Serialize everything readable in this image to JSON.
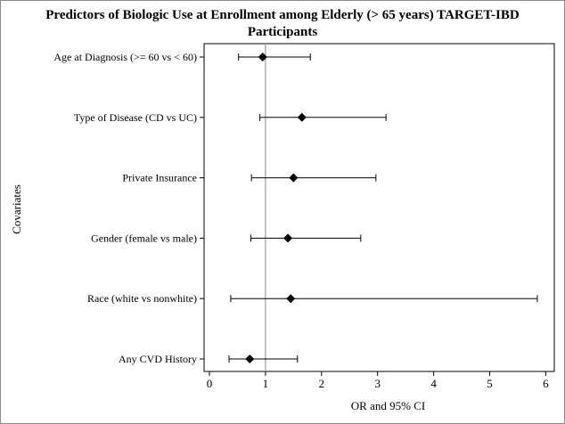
{
  "chart_data": {
    "type": "forest",
    "title_line1": "Predictors of Biologic Use at Enrollment among Elderly (> 65 years) TARGET-IBD",
    "title_line2": "Participants",
    "xlabel": "OR and 95% CI",
    "ylabel": "Covariates",
    "xlim": [
      0,
      6
    ],
    "xticks": [
      "0",
      "1",
      "2",
      "3",
      "4",
      "5",
      "6"
    ],
    "reference_line": 1,
    "grid": false,
    "marker": "diamond",
    "colors": {
      "marker": "#000000",
      "ci": "#000000",
      "reference": "#999999",
      "frame": "#000000"
    },
    "rows": [
      {
        "label": "Age at Diagnosis (>= 60 vs < 60)",
        "or": 0.95,
        "lower": 0.52,
        "upper": 1.8
      },
      {
        "label": "Type of Disease (CD vs UC)",
        "or": 1.65,
        "lower": 0.9,
        "upper": 3.15
      },
      {
        "label": "Private Insurance",
        "or": 1.5,
        "lower": 0.75,
        "upper": 2.97
      },
      {
        "label": "Gender (female vs male)",
        "or": 1.4,
        "lower": 0.74,
        "upper": 2.7
      },
      {
        "label": "Race (white vs nonwhite)",
        "or": 1.45,
        "lower": 0.38,
        "upper": 5.85
      },
      {
        "label": "Any CVD History",
        "or": 0.72,
        "lower": 0.35,
        "upper": 1.57
      }
    ]
  }
}
